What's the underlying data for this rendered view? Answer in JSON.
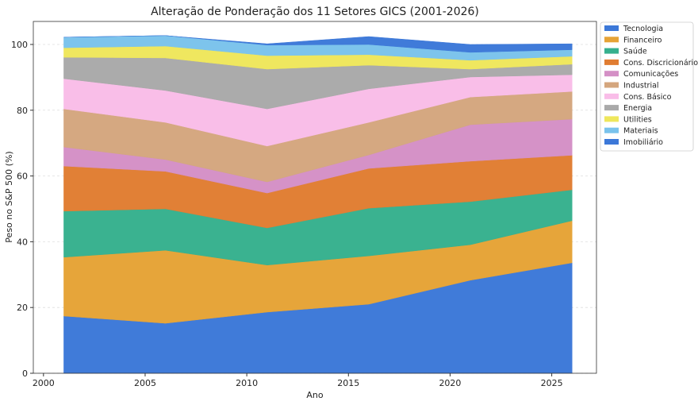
{
  "chart_data": {
    "type": "area",
    "stacked": true,
    "title": "Alteração de Ponderação dos 11 Setores GICS (2001-2026)",
    "xlabel": "Ano",
    "ylabel": "Peso no S&P 500 (%)",
    "xlim": [
      1999.5,
      2027.2
    ],
    "ylim": [
      0,
      107
    ],
    "xticks": [
      2000,
      2005,
      2010,
      2015,
      2020,
      2025
    ],
    "yticks": [
      0,
      20,
      40,
      60,
      80,
      100
    ],
    "grid": "horizontal dashed",
    "legend_position": "outside-right-top",
    "x": [
      2001,
      2006,
      2011,
      2016,
      2021,
      2026
    ],
    "series": [
      {
        "name": "Tecnologia",
        "color": "#3c78d8",
        "values": [
          17.4,
          15.2,
          18.6,
          21.0,
          28.3,
          33.6
        ]
      },
      {
        "name": "Financeiro",
        "color": "#e6a336",
        "values": [
          17.9,
          22.2,
          14.3,
          14.7,
          10.8,
          12.8
        ]
      },
      {
        "name": "Saúde",
        "color": "#36b08e",
        "values": [
          14.0,
          12.6,
          11.3,
          14.5,
          13.1,
          9.4
        ]
      },
      {
        "name": "Cons. Discricionário",
        "color": "#e07d32",
        "values": [
          13.7,
          11.4,
          10.6,
          12.1,
          12.3,
          10.5
        ]
      },
      {
        "name": "Comunicações",
        "color": "#d490c6",
        "values": [
          5.8,
          3.6,
          3.4,
          4.1,
          11.1,
          11.0
        ]
      },
      {
        "name": "Industrial",
        "color": "#d4a67e",
        "values": [
          11.6,
          11.3,
          10.9,
          9.9,
          8.4,
          8.4
        ]
      },
      {
        "name": "Cons. Básico",
        "color": "#f9bde8",
        "values": [
          9.2,
          9.7,
          11.3,
          10.2,
          6.1,
          5.1
        ]
      },
      {
        "name": "Energia",
        "color": "#a9a9a9",
        "values": [
          6.5,
          9.9,
          12.1,
          7.2,
          2.4,
          3.2
        ]
      },
      {
        "name": "Utilities",
        "color": "#efe75c",
        "values": [
          2.9,
          3.6,
          4.1,
          3.2,
          2.7,
          2.4
        ]
      },
      {
        "name": "Materiais",
        "color": "#7ac3ec",
        "values": [
          3.2,
          3.2,
          3.2,
          3.1,
          2.4,
          2.0
        ]
      },
      {
        "name": "Imobiliário",
        "color": "#3c78d8",
        "values": [
          0,
          0,
          0.4,
          2.4,
          2.4,
          1.8
        ]
      }
    ]
  }
}
